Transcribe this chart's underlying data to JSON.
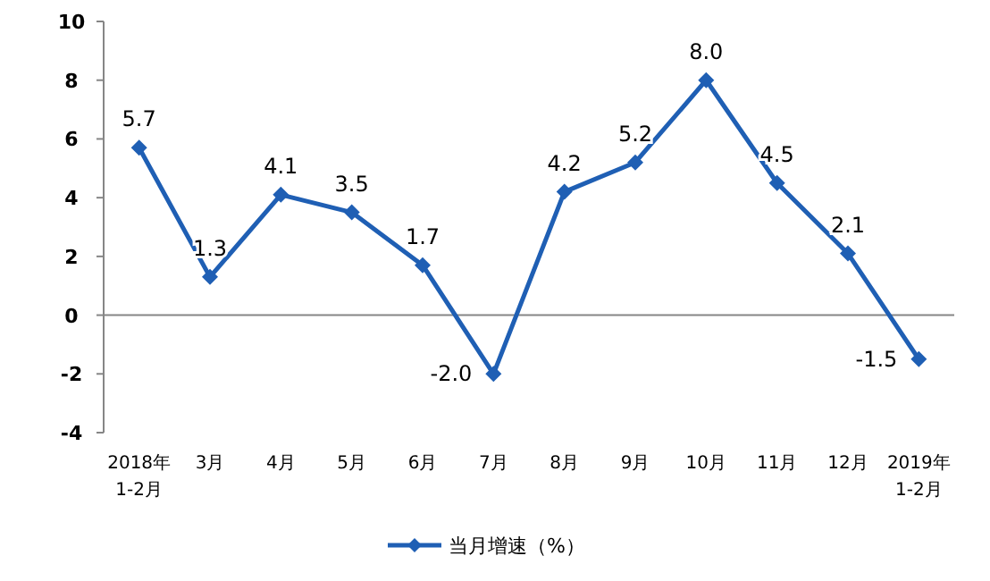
{
  "chart_data": {
    "type": "line",
    "categories": [
      "2018年\n1-2月",
      "3月",
      "4月",
      "5月",
      "6月",
      "7月",
      "8月",
      "9月",
      "10月",
      "11月",
      "12月",
      "2019年\n1-2月"
    ],
    "series": [
      {
        "name": "当月增速（%）",
        "color": "#1f5fb4",
        "values": [
          5.7,
          1.3,
          4.1,
          3.5,
          1.7,
          -2.0,
          4.2,
          5.2,
          8.0,
          4.5,
          2.1,
          -1.5
        ],
        "value_labels": [
          "5.7",
          "1.3",
          "4.1",
          "3.5",
          "1.7",
          "-2.0",
          "4.2",
          "5.2",
          "8.0",
          "4.5",
          "2.1",
          "-1.5"
        ]
      }
    ],
    "ylim": [
      -4,
      10
    ],
    "yticks": [
      -4,
      -2,
      0,
      2,
      4,
      6,
      8,
      10
    ],
    "marker": "diamond",
    "line_style": "solid",
    "legend": "bottom"
  }
}
